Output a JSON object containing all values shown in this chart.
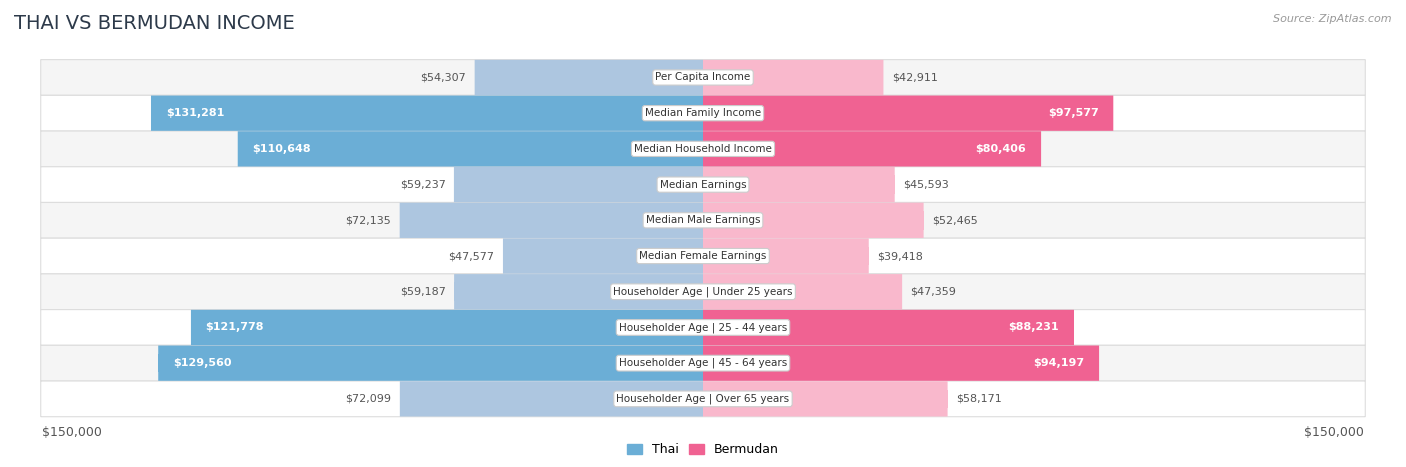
{
  "title": "THAI VS BERMUDAN INCOME",
  "source": "Source: ZipAtlas.com",
  "categories": [
    "Per Capita Income",
    "Median Family Income",
    "Median Household Income",
    "Median Earnings",
    "Median Male Earnings",
    "Median Female Earnings",
    "Householder Age | Under 25 years",
    "Householder Age | 25 - 44 years",
    "Householder Age | 45 - 64 years",
    "Householder Age | Over 65 years"
  ],
  "thai_values": [
    54307,
    131281,
    110648,
    59237,
    72135,
    47577,
    59187,
    121778,
    129560,
    72099
  ],
  "bermudan_values": [
    42911,
    97577,
    80406,
    45593,
    52465,
    39418,
    47359,
    88231,
    94197,
    58171
  ],
  "thai_labels": [
    "$54,307",
    "$131,281",
    "$110,648",
    "$59,237",
    "$72,135",
    "$47,577",
    "$59,187",
    "$121,778",
    "$129,560",
    "$72,099"
  ],
  "bermudan_labels": [
    "$42,911",
    "$97,577",
    "$80,406",
    "$45,593",
    "$52,465",
    "$39,418",
    "$47,359",
    "$88,231",
    "$94,197",
    "$58,171"
  ],
  "max_value": 150000,
  "thai_color_light": "#adc6e0",
  "thai_color_dark": "#6baed6",
  "bermudan_color_light": "#f9b8cc",
  "bermudan_color_dark": "#f06292",
  "label_white": "#ffffff",
  "label_dark": "#555555",
  "background_color": "#ffffff",
  "row_bg_even": "#f5f5f5",
  "row_bg_odd": "#ffffff",
  "legend_thai": "Thai",
  "legend_bermudan": "Bermudan",
  "thai_inside_threshold": 95000,
  "bermudan_inside_threshold": 75000,
  "bar_height": 0.52,
  "title_fontsize": 14,
  "title_color": "#2d3a4a",
  "source_color": "#999999"
}
